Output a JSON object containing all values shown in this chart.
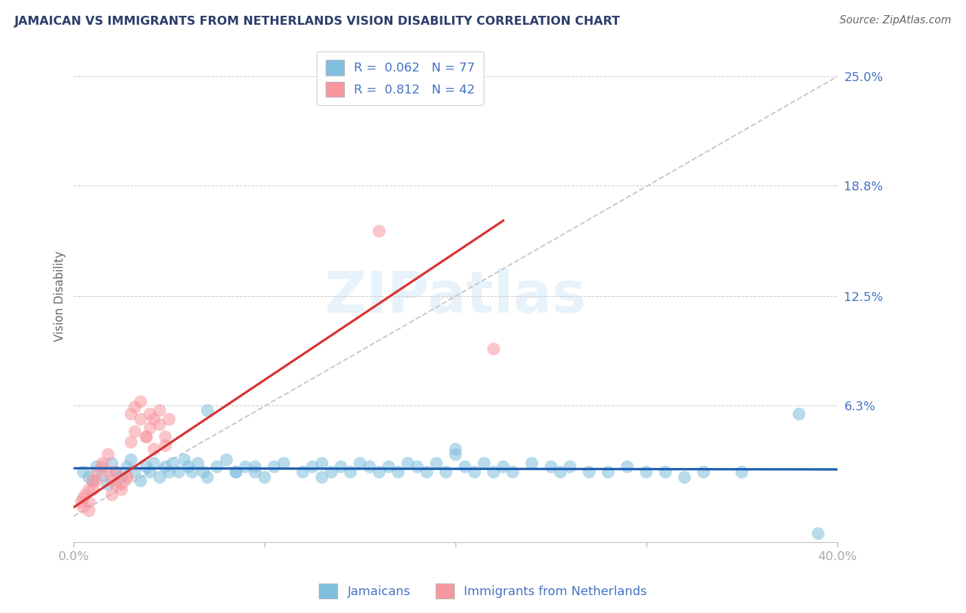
{
  "title": "JAMAICAN VS IMMIGRANTS FROM NETHERLANDS VISION DISABILITY CORRELATION CHART",
  "source": "Source: ZipAtlas.com",
  "ylabel": "Vision Disability",
  "xlim": [
    0.0,
    0.4
  ],
  "ylim": [
    -0.015,
    0.265
  ],
  "ytick_vals": [
    0.063,
    0.125,
    0.188,
    0.25
  ],
  "ytick_labels": [
    "6.3%",
    "12.5%",
    "18.8%",
    "25.0%"
  ],
  "xticks": [
    0.0,
    0.1,
    0.2,
    0.3,
    0.4
  ],
  "xtick_labels": [
    "0.0%",
    "",
    "",
    "",
    "40.0%"
  ],
  "legend_R1": "0.062",
  "legend_N1": "77",
  "legend_R2": "0.812",
  "legend_N2": "42",
  "blue_color": "#7fbfdd",
  "pink_color": "#f797a0",
  "blue_line_color": "#2060b0",
  "pink_line_color": "#d83535",
  "ref_line_color": "#c8c8c8",
  "grid_color": "#cccccc",
  "title_color": "#2c3e6b",
  "axis_label_color": "#4472c4",
  "watermark": "ZIPatlas",
  "blue_scatter_x": [
    0.005,
    0.008,
    0.01,
    0.012,
    0.015,
    0.018,
    0.02,
    0.022,
    0.025,
    0.028,
    0.03,
    0.032,
    0.035,
    0.038,
    0.04,
    0.042,
    0.045,
    0.048,
    0.05,
    0.052,
    0.055,
    0.058,
    0.06,
    0.062,
    0.065,
    0.068,
    0.07,
    0.075,
    0.08,
    0.085,
    0.09,
    0.095,
    0.1,
    0.105,
    0.11,
    0.12,
    0.125,
    0.13,
    0.135,
    0.14,
    0.145,
    0.15,
    0.155,
    0.16,
    0.165,
    0.17,
    0.175,
    0.18,
    0.185,
    0.19,
    0.195,
    0.2,
    0.205,
    0.21,
    0.215,
    0.22,
    0.225,
    0.23,
    0.24,
    0.25,
    0.255,
    0.26,
    0.27,
    0.28,
    0.29,
    0.3,
    0.31,
    0.32,
    0.33,
    0.35,
    0.07,
    0.085,
    0.095,
    0.13,
    0.2,
    0.38,
    0.39
  ],
  "blue_scatter_y": [
    0.025,
    0.022,
    0.02,
    0.028,
    0.023,
    0.018,
    0.03,
    0.025,
    0.022,
    0.028,
    0.032,
    0.025,
    0.02,
    0.028,
    0.025,
    0.03,
    0.022,
    0.028,
    0.025,
    0.03,
    0.025,
    0.032,
    0.028,
    0.025,
    0.03,
    0.025,
    0.022,
    0.028,
    0.032,
    0.025,
    0.028,
    0.025,
    0.022,
    0.028,
    0.03,
    0.025,
    0.028,
    0.03,
    0.025,
    0.028,
    0.025,
    0.03,
    0.028,
    0.025,
    0.028,
    0.025,
    0.03,
    0.028,
    0.025,
    0.03,
    0.025,
    0.038,
    0.028,
    0.025,
    0.03,
    0.025,
    0.028,
    0.025,
    0.03,
    0.028,
    0.025,
    0.028,
    0.025,
    0.025,
    0.028,
    0.025,
    0.025,
    0.022,
    0.025,
    0.025,
    0.06,
    0.025,
    0.028,
    0.022,
    0.035,
    0.058,
    -0.01
  ],
  "pink_scatter_x": [
    0.004,
    0.006,
    0.008,
    0.01,
    0.012,
    0.015,
    0.018,
    0.02,
    0.022,
    0.025,
    0.028,
    0.03,
    0.032,
    0.035,
    0.038,
    0.04,
    0.042,
    0.045,
    0.048,
    0.05,
    0.005,
    0.008,
    0.01,
    0.012,
    0.015,
    0.018,
    0.02,
    0.022,
    0.025,
    0.028,
    0.03,
    0.032,
    0.035,
    0.038,
    0.04,
    0.042,
    0.045,
    0.048,
    0.005,
    0.008,
    0.16,
    0.22
  ],
  "pink_scatter_y": [
    0.008,
    0.012,
    0.015,
    0.02,
    0.025,
    0.03,
    0.035,
    0.02,
    0.025,
    0.018,
    0.022,
    0.042,
    0.048,
    0.055,
    0.045,
    0.05,
    0.038,
    0.06,
    0.045,
    0.055,
    0.01,
    0.008,
    0.015,
    0.02,
    0.028,
    0.025,
    0.012,
    0.018,
    0.015,
    0.022,
    0.058,
    0.062,
    0.065,
    0.045,
    0.058,
    0.055,
    0.052,
    0.04,
    0.005,
    0.003,
    0.162,
    0.095
  ],
  "blue_line_y": [
    0.025,
    0.026
  ],
  "pink_line_x": [
    0.0,
    0.225
  ],
  "pink_line_y": [
    0.005,
    0.168
  ]
}
